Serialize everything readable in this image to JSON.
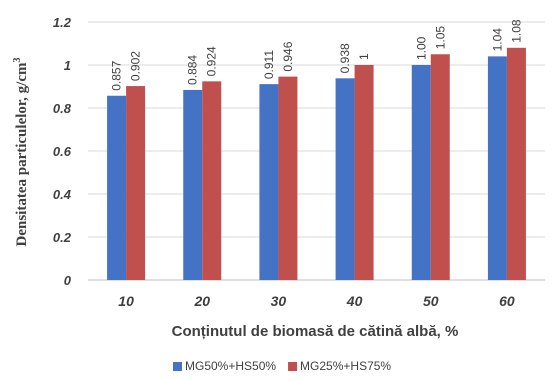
{
  "chart_data": {
    "type": "bar",
    "title": "",
    "xlabel": "Conținutul de biomasă de cătină albă, %",
    "ylabel": "Densitatea particulelor, g/cm",
    "ylabel_sup": "3",
    "categories": [
      "10",
      "20",
      "30",
      "40",
      "50",
      "60"
    ],
    "series": [
      {
        "name": "MG50%+HS50%",
        "color": "#4472C4",
        "values": [
          0.857,
          0.884,
          0.911,
          0.938,
          1.0,
          1.04
        ],
        "labels": [
          "0.857",
          "0.884",
          "0.911",
          "0.938",
          "1.00",
          "1.04"
        ]
      },
      {
        "name": "MG25%+HS75%",
        "color": "#C0504D",
        "values": [
          0.902,
          0.924,
          0.946,
          1.0,
          1.05,
          1.08
        ],
        "labels": [
          "0.902",
          "0.924",
          "0.946",
          "1",
          "1.05",
          "1.08"
        ]
      }
    ],
    "yticks": [
      "0",
      "0.2",
      "0.4",
      "0.6",
      "0.8",
      "1",
      "1.2"
    ],
    "ylim": [
      0,
      1.2
    ],
    "grid": true,
    "legend_position": "bottom"
  }
}
